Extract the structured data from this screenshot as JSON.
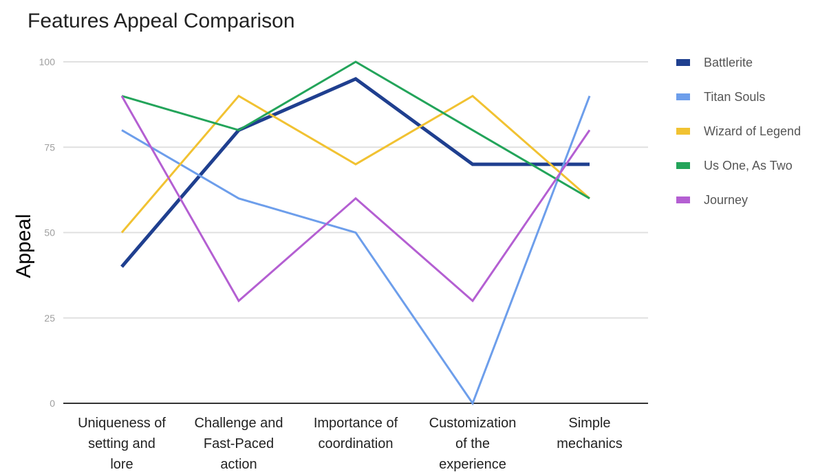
{
  "chart_data": {
    "type": "line",
    "title": "Features Appeal Comparison",
    "xlabel": "",
    "ylabel": "Appeal",
    "ylim": [
      0,
      100
    ],
    "yticks": [
      0,
      25,
      50,
      75,
      100
    ],
    "grid": true,
    "legend_position": "right",
    "categories": [
      [
        "Uniqueness of",
        "setting and",
        "lore"
      ],
      [
        "Challenge and",
        "Fast-Paced",
        "action"
      ],
      [
        "Importance of",
        "coordination"
      ],
      [
        "Customization",
        "of the",
        "experience"
      ],
      [
        "Simple",
        "mechanics"
      ]
    ],
    "series": [
      {
        "name": "Battlerite",
        "color": "#1f3f8f",
        "values": [
          40,
          80,
          95,
          70,
          70
        ]
      },
      {
        "name": "Titan Souls",
        "color": "#6d9eeb",
        "values": [
          80,
          60,
          50,
          0,
          90
        ]
      },
      {
        "name": "Wizard of Legend",
        "color": "#f1c232",
        "values": [
          50,
          90,
          70,
          90,
          60
        ]
      },
      {
        "name": "Us One, As Two",
        "color": "#23a45a",
        "values": [
          90,
          80,
          100,
          80,
          60
        ]
      },
      {
        "name": "Journey",
        "color": "#b45fd2",
        "values": [
          90,
          30,
          60,
          30,
          80
        ]
      }
    ]
  }
}
